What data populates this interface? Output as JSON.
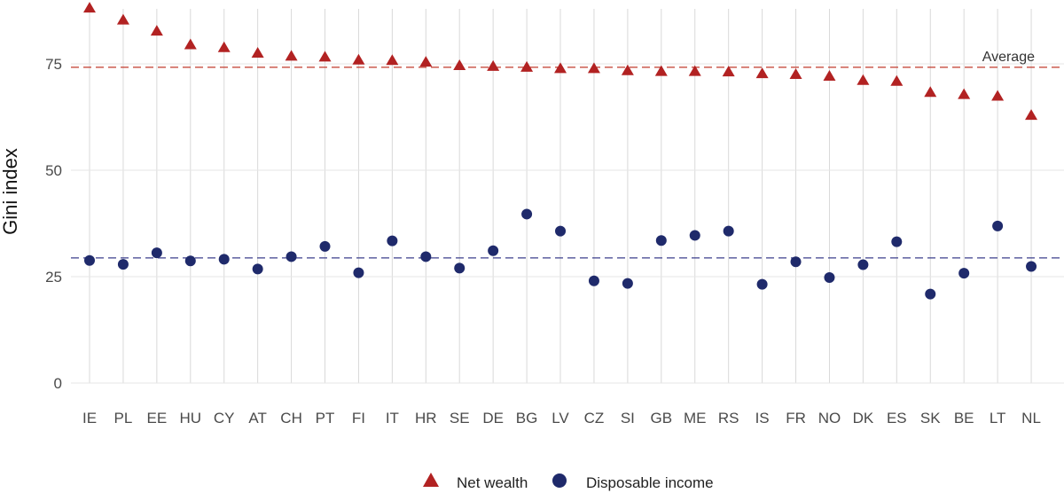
{
  "chart_data": {
    "type": "scatter",
    "categories": [
      "IE",
      "PL",
      "EE",
      "HU",
      "CY",
      "AT",
      "CH",
      "PT",
      "FI",
      "IT",
      "HR",
      "SE",
      "DE",
      "BG",
      "LV",
      "CZ",
      "SI",
      "GB",
      "ME",
      "RS",
      "IS",
      "FR",
      "NO",
      "DK",
      "ES",
      "SK",
      "BE",
      "LT",
      "NL"
    ],
    "series": [
      {
        "name": "Net wealth",
        "marker": "triangle",
        "color": "#b22222",
        "values": [
          88.0,
          85.2,
          82.6,
          79.4,
          78.7,
          77.4,
          76.7,
          76.5,
          75.8,
          75.7,
          75.3,
          74.5,
          74.3,
          74.1,
          73.8,
          73.8,
          73.3,
          73.1,
          73.1,
          73.0,
          72.6,
          72.4,
          72.0,
          71.0,
          70.8,
          68.2,
          67.7,
          67.3,
          62.8
        ]
      },
      {
        "name": "Disposable income",
        "marker": "circle",
        "color": "#1f2a6b",
        "values": [
          28.8,
          27.9,
          30.6,
          28.7,
          29.1,
          26.8,
          29.7,
          32.1,
          25.9,
          33.4,
          29.7,
          27.0,
          31.1,
          39.7,
          35.7,
          24.0,
          23.4,
          33.5,
          34.7,
          35.7,
          23.2,
          28.5,
          24.8,
          27.8,
          33.2,
          20.9,
          25.8,
          36.9,
          27.4
        ]
      }
    ],
    "reference_lines": [
      {
        "series": "Net wealth",
        "value": 74.2,
        "label": "Average",
        "color": "#c0392b"
      },
      {
        "series": "Disposable income",
        "value": 29.4,
        "label": "",
        "color": "#3b3f8c"
      }
    ],
    "ylabel": "Gini index",
    "xlabel": "",
    "title": "",
    "ylim": [
      0,
      90
    ],
    "yticks": [
      0,
      25,
      50,
      75
    ],
    "grid": "vertical lines per category",
    "legend": {
      "position": "bottom",
      "entries": [
        "Net wealth",
        "Disposable income"
      ]
    }
  }
}
